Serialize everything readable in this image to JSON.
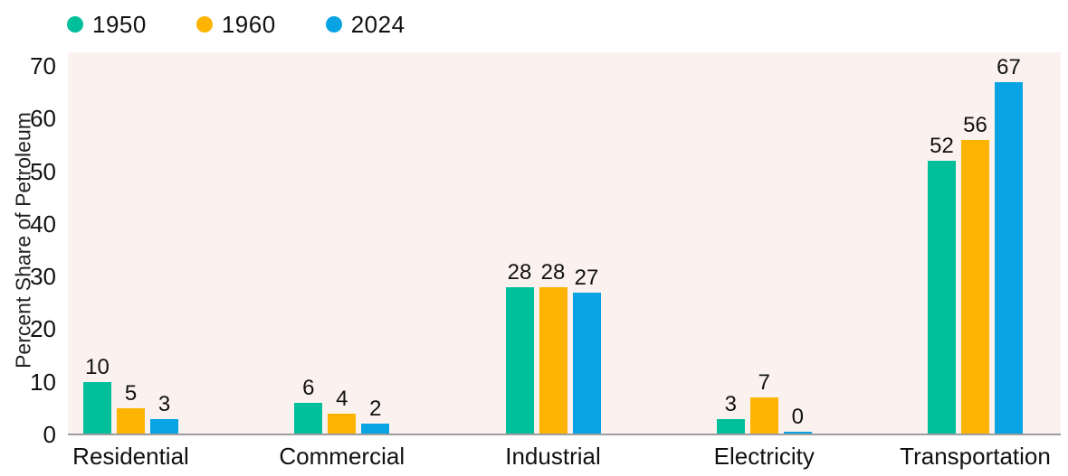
{
  "page": {
    "background": "#ffffff",
    "plot_background": "#FBF2F0",
    "axis_line_color": "#9E9E9E",
    "text_color": "#1a1a1a"
  },
  "legend": {
    "items": [
      {
        "label": "1950",
        "color": "#02BF9C",
        "icon": "circle-dot-icon"
      },
      {
        "label": "1960",
        "color": "#FDB301",
        "icon": "circle-dot-icon"
      },
      {
        "label": "2024",
        "color": "#07A3E2",
        "icon": "circle-dot-icon"
      }
    ]
  },
  "chart_data": {
    "type": "bar",
    "title": "",
    "xlabel": "",
    "ylabel": "Percent Share of Petroleum",
    "categories": [
      "Residential",
      "Commercial",
      "Industrial",
      "Electricity",
      "Transportation"
    ],
    "series": [
      {
        "name": "1950",
        "color": "#02BF9C",
        "values": [
          10,
          6,
          28,
          3,
          52
        ]
      },
      {
        "name": "1960",
        "color": "#FDB301",
        "values": [
          5,
          4,
          28,
          7,
          56
        ]
      },
      {
        "name": "2024",
        "color": "#07A3E2",
        "values": [
          3,
          2,
          27,
          0,
          67
        ]
      }
    ],
    "ylim": [
      0,
      70
    ],
    "yticks": [
      0,
      10,
      20,
      30,
      40,
      50,
      60,
      70
    ],
    "grid": false,
    "value_labels": true,
    "legend_position": "top-left"
  }
}
